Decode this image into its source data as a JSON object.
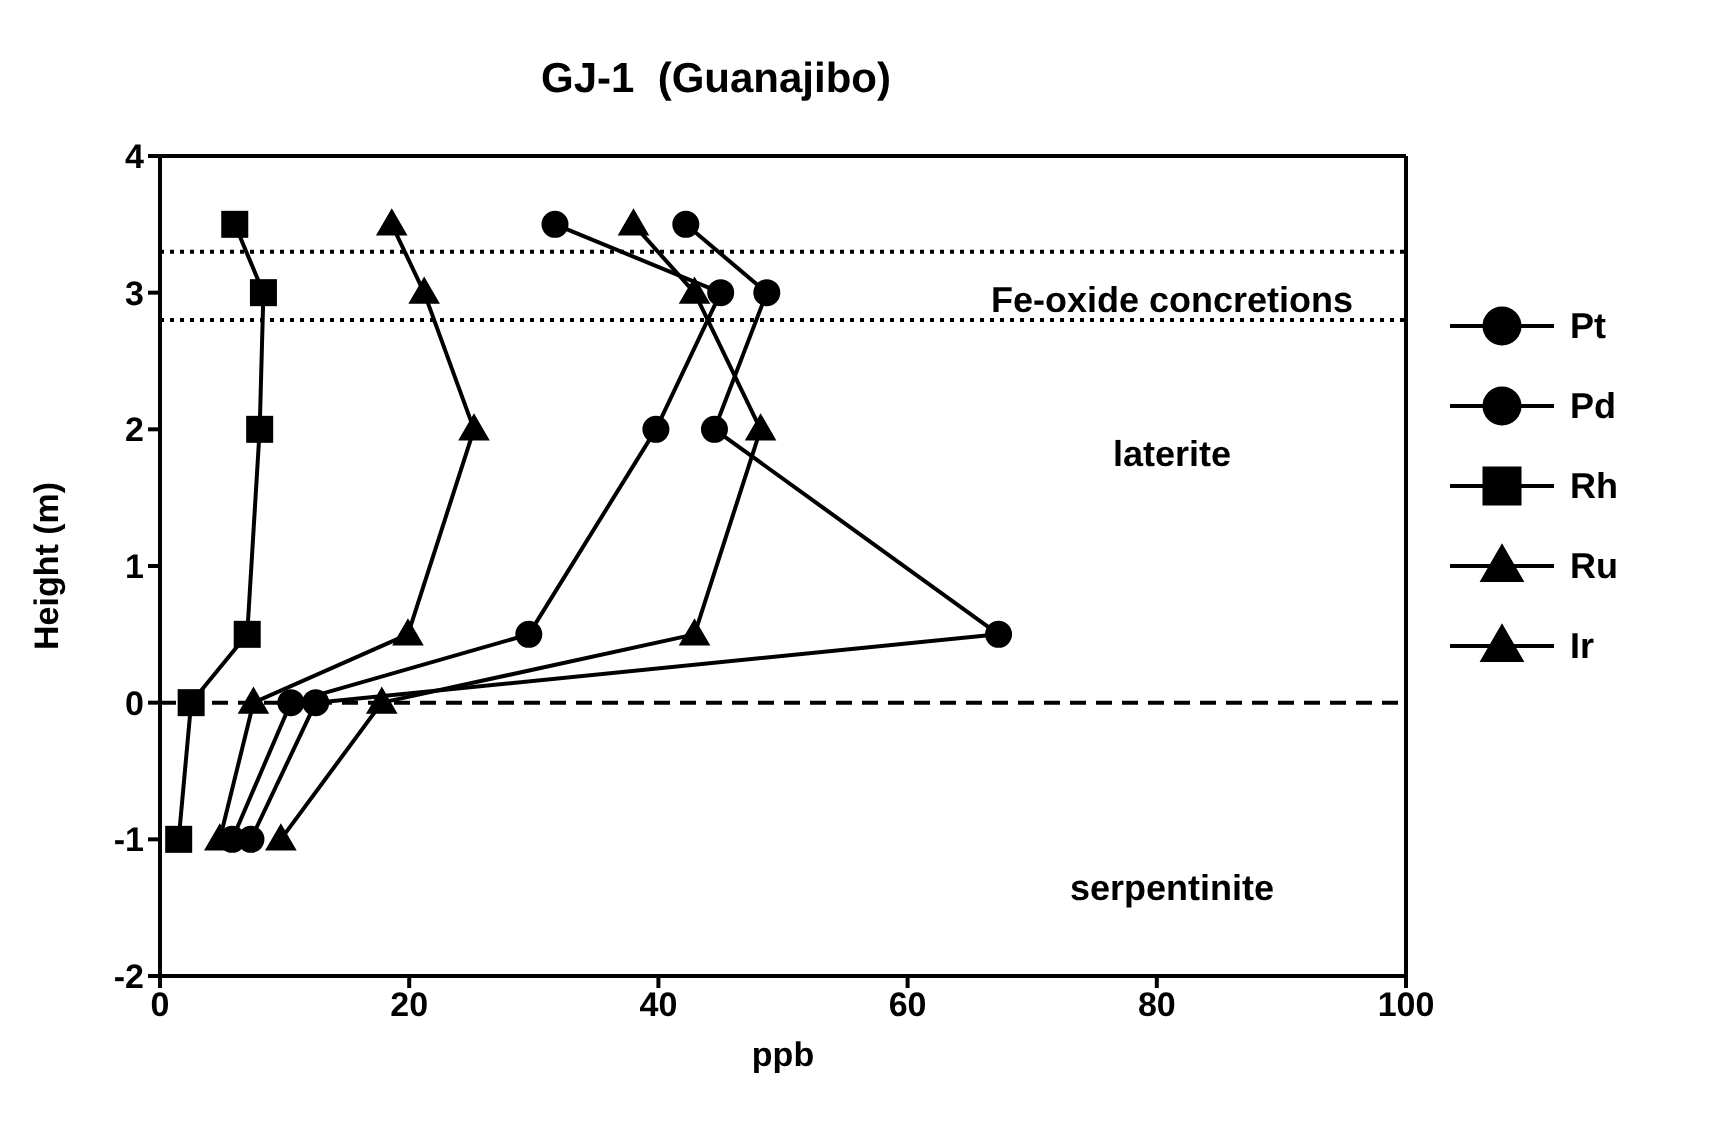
{
  "chart_data": {
    "type": "line",
    "title": "GJ-1  (Guanajibo)",
    "xlabel": "ppb",
    "ylabel": "Height (m)",
    "xlim": [
      0,
      100
    ],
    "xticks": [
      0,
      20,
      40,
      60,
      80,
      100
    ],
    "ylim": [
      -2,
      4
    ],
    "yticks": [
      -2,
      -1,
      0,
      1,
      2,
      3,
      4
    ],
    "grid": false,
    "legend": "right",
    "line_style": "solid",
    "series": [
      {
        "name": "Pt",
        "color": "#000000",
        "marker": "circle",
        "x": [
          42.2,
          48.7,
          44.5,
          67.3,
          12.5,
          7.3
        ],
        "values": [
          3.5,
          3,
          2,
          0.5,
          0,
          -1
        ]
      },
      {
        "name": "Pd",
        "color": "#000000",
        "marker": "circle",
        "x": [
          31.7,
          45,
          39.8,
          29.6,
          10.5,
          5.8
        ],
        "values": [
          3.5,
          3,
          2,
          0.5,
          0,
          -1
        ]
      },
      {
        "name": "Rh",
        "color": "#000000",
        "marker": "square",
        "x": [
          6,
          8.3,
          8,
          7,
          2.5,
          1.5
        ],
        "values": [
          3.5,
          3,
          2,
          0.5,
          0,
          -1
        ]
      },
      {
        "name": "Ru",
        "color": "#000000",
        "marker": "triangle",
        "x": [
          38,
          42.9,
          48.2,
          42.9,
          17.8,
          9.7
        ],
        "values": [
          3.5,
          3,
          2,
          0.5,
          0,
          -1
        ]
      },
      {
        "name": "Ir",
        "color": "#000000",
        "marker": "triangle",
        "x": [
          18.6,
          21.2,
          25.2,
          19.9,
          7.5,
          4.8
        ],
        "values": [
          3.5,
          3,
          2,
          0.5,
          0,
          -1
        ]
      }
    ],
    "ref_lines": [
      {
        "axis": "y",
        "value": 3.3,
        "line_style": "dotted",
        "color": "#000000"
      },
      {
        "axis": "y",
        "value": 2.8,
        "line_style": "dotted",
        "color": "#000000"
      },
      {
        "axis": "y",
        "value": 0,
        "line_style": "dashed",
        "color": "#000000"
      }
    ],
    "annotations": [
      "Fe-oxide concretions",
      "laterite",
      "serpentinite"
    ]
  }
}
